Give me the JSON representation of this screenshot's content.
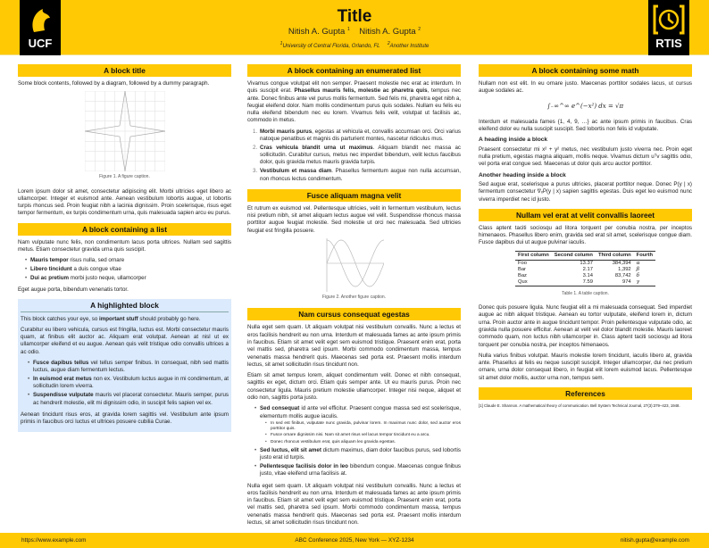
{
  "header": {
    "title": "Title",
    "authors": [
      {
        "name": "Nitish A. Gupta",
        "sup": "1"
      },
      {
        "name": "Nitish A. Gupta",
        "sup": "2"
      }
    ],
    "affiliations": [
      {
        "sup": "1",
        "name": "University of Central Florida, Orlando, FL"
      },
      {
        "sup": "2",
        "name": "Another Institute"
      }
    ],
    "logo_left": "UCF",
    "logo_right": "RTIS",
    "colors": {
      "accent": "#ffc904",
      "highlight": "#dbeafc"
    }
  },
  "col1": {
    "b1": {
      "title": "A block title",
      "intro": "Some block contents, followed by a diagram, followed by a dummy paragraph.",
      "caption": "Figure 1. A figure caption.",
      "para": "Lorem ipsum dolor sit amet, consectetur adipiscing elit. Morbi ultricies eget libero ac ullamcorper. Integer et euismod ante. Aenean vestibulum lobortis augue, ut lobortis turpis rhoncus sed. Proin feugiat nibh a lacinia dignissim. Proin scelerisque, risus eget tempor fermentum, ex turpis condimentum urna, quis malesuada sapien arcu eu purus."
    },
    "b2": {
      "title": "A block containing a list",
      "intro": "Nam vulputate nunc felis, non condimentum lacus porta ultrices. Nullam sed sagittis metus. Etiam consectetur gravida urna quis suscipit.",
      "items": [
        {
          "bold": "Mauris tempor",
          "text": " risus nulla, sed ornare"
        },
        {
          "bold": "Libero tincidunt",
          "text": " a duis congue vitae"
        },
        {
          "bold": "Dui ac pretium",
          "text": " morbi justo neque, ullamcorper"
        }
      ],
      "outro": "Eget augue porta, bibendum venenatis tortor."
    },
    "b3": {
      "title": "A highlighted block",
      "p1a": "This block catches your eye, so ",
      "p1b": "important stuff",
      "p1c": " should probably go here.",
      "p2": "Curabitur eu libero vehicula, cursus est fringilla, luctus est. Morbi consectetur mauris quam, at finibus elit auctor ac. Aliquam erat volutpat. Aenean at nisl ut ex ullamcorper eleifend et eu augue. Aenean quis velit tristique odio convallis ultrices a ac odio.",
      "items": [
        {
          "bold": "Fusce dapibus tellus",
          "text": " vel tellus semper finibus. In consequat, nibh sed mattis luctus, augue diam fermentum lectus."
        },
        {
          "bold": "In euismod erat metus",
          "text": " non ex. Vestibulum luctus augue in mi condimentum, at sollicitudin lorem viverra."
        },
        {
          "bold": "Suspendisse vulputate",
          "text": " mauris vel placerat consectetur. Mauris semper, purus ac hendrerit molestie, elit mi dignissim odio, in suscipit felis sapien vel ex."
        }
      ],
      "p3": "Aenean tincidunt risus eros, at gravida lorem sagittis vel. Vestibulum ante ipsum primis in faucibus orci luctus et ultrices posuere cubilia Curae."
    }
  },
  "col2": {
    "b1": {
      "title": "A block containing an enumerated list",
      "pa": "Vivamus congue volutpat elit non semper. Praesent molestie nec erat ac interdum. In quis suscipit erat. ",
      "pb": "Phasellus mauris felis, molestie ac pharetra quis",
      "pc": ", tempus nec ante. Donec finibus ante vel purus mollis fermentum. Sed felis mi, pharetra eget nibh a, feugiat eleifend dolor. Nam mollis condimentum purus quis sodales. Nullam eu felis eu nulla eleifend bibendum nec eu lorem. Vivamus felis velit, volutpat ut facilisis ac, commodo in metus.",
      "items": [
        {
          "num": "1.",
          "bold": "Morbi mauris purus",
          "text": ", egestas at vehicula et, convallis accumsan orci. Orci varius natoque penatibus et magnis dis parturient montes, nascetur ridiculus mus."
        },
        {
          "num": "2.",
          "bold": "Cras vehicula blandit urna ut maximus",
          "text": ". Aliquam blandit nec massa ac sollicitudin. Curabitur cursus, metus nec imperdiet bibendum, velit lectus faucibus dolor, quis gravida metus mauris gravida turpis."
        },
        {
          "num": "3.",
          "bold": "Vestibulum et massa diam",
          "text": ". Phasellus fermentum augue non nulla accumsan, non rhoncus lectus condimentum."
        }
      ]
    },
    "b2": {
      "title": "Fusce aliquam magna velit",
      "para": "Et rutrum ex euismod vel. Pellentesque ultricies, velit in fermentum vestibulum, lectus nisi pretium nibh, sit amet aliquam lectus augue vel velit. Suspendisse rhoncus massa porttitor augue feugiat molestie. Sed molestie ut orci nec malesuada. Sed ultricies feugiat est fringilla posuere.",
      "caption": "Figure 2. Another figure caption."
    },
    "b3": {
      "title": "Nam cursus consequat egestas",
      "p1": "Nulla eget sem quam. Ut aliquam volutpat nisi vestibulum convallis. Nunc a lectus et eros facilisis hendrerit eu non urna. Interdum et malesuada fames ac ante ipsum primis in faucibus. Etiam sit amet velit eget sem euismod tristique. Praesent enim erat, porta vel mattis sed, pharetra sed ipsum. Morbi commodo condimentum massa, tempus venenatis massa hendrerit quis. Maecenas sed porta est. Praesent mollis interdum lectus, sit amet sollicitudin risus tincidunt non.",
      "p2": "Etiam sit amet tempus lorem, aliquet condimentum velit. Donec et nibh consequat, sagittis ex eget, dictum orci. Etiam quis semper ante. Ut eu mauris purus. Proin nec consectetur ligula. Mauris pretium molestie ullamcorper. Integer nisi neque, aliquet et odio non, sagittis porta justo.",
      "items": [
        {
          "bold": "Sed consequat",
          "text": " id ante vel efficitur. Praesent congue massa sed est scelerisque, elementum mollis augue iaculis.",
          "sub": [
            "In sed est finibus, vulputate nunc gravida, pulvinar lorem. In maximus nunc dolor, sed auctor eros porttitor quis.",
            "Fusce ornare dignissim nisi. Nam sit amet risus vel lacus tempor tincidunt eu a arcu.",
            "Donec rhoncus vestibulum erat, quis aliquam leo gravida egestas."
          ]
        },
        {
          "bold": "Sed luctus, elit sit amet",
          "text": " dictum maximus, diam dolor faucibus purus, sed lobortis justo erat id turpis."
        },
        {
          "bold": "Pellentesque facilisis dolor in leo",
          "text": " bibendum congue. Maecenas congue finibus justo, vitae eleifend urna facilisis at."
        }
      ],
      "p3": "Nulla eget sem quam. Ut aliquam volutpat nisi vestibulum convallis. Nunc a lectus et eros facilisis hendrerit eu non urna. Interdum et malesuada fames ac ante ipsum primis in faucibus. Etiam sit amet velit eget sem euismod tristique. Praesent enim erat, porta vel mattis sed, pharetra sed ipsum. Morbi commodo condimentum massa, tempus venenatis massa hendrerit quis. Maecenas sed porta est. Praesent mollis interdum lectus, sit amet sollicitudin risus tincidunt non."
    }
  },
  "col3": {
    "b1": {
      "title": "A block containing some math",
      "p1": "Nullam non est elit. In eu ornare justo. Maecenas porttitor sodales lacus, ut cursus augue sodales ac.",
      "eq": "∫₋∞^∞ e^(−x²) dx = √π",
      "p2": "Interdum et malesuada fames {1, 4, 9, …} ac ante ipsum primis in faucibus. Cras eleifend dolor eu nulla suscipit suscipit. Sed lobortis non felis id vulputate.",
      "h1": "A heading inside a block",
      "p3": "Praesent consectetur mi x² + y² metus, nec vestibulum justo viverra nec. Proin eget nulla pretium, egestas magna aliquam, mollis neque. Vivamus dictum uᵀv sagittis odio, vel porta erat congue sed. Maecenas ut dolor quis arcu auctor porttitor.",
      "h2": "Another heading inside a block",
      "p4": "Sed augue erat, scelerisque a purus ultricies, placerat porttitor neque. Donec P(y | x) fermentum consectetur ∇ₓP(y | x) sapien sagittis egestas. Duis eget leo euismod nunc viverra imperdiet nec id justo."
    },
    "b2": {
      "title": "Nullam vel erat at velit convallis laoreet",
      "p1": "Class aptent taciti sociosqu ad litora torquent per conubia nostra, per inceptos himenaeos. Phasellus libero enim, gravida sed erat sit amet, scelerisque congue diam. Fusce dapibus dui ut augue pulvinar iaculis.",
      "table": {
        "headers": [
          "First column",
          "Second column",
          "Third column",
          "Fourth"
        ],
        "rows": [
          [
            "Foo",
            "13.37",
            "384,394",
            "α"
          ],
          [
            "Bar",
            "2.17",
            "1,392",
            "β"
          ],
          [
            "Baz",
            "3.14",
            "83,742",
            "δ"
          ],
          [
            "Qux",
            "7.59",
            "974",
            "γ"
          ]
        ]
      },
      "caption": "Table 1. A table caption.",
      "p2": "Donec quis posuere ligula. Nunc feugiat elit a mi malesuada consequat. Sed imperdiet augue ac nibh aliquet tristique. Aenean eu tortor vulputate, eleifend lorem in, dictum urna. Proin auctor ante in augue tincidunt tempor. Proin pellentesque vulputate odio, ac gravida nulla posuere efficitur. Aenean at velit vel dolor blandit molestie. Mauris laoreet commodo quam, non luctus nibh ullamcorper in. Class aptent taciti sociosqu ad litora torquent per conubia nostra, per inceptos himenaeos.",
      "p3": "Nulla varius finibus volutpat. Mauris molestie lorem tincidunt, iaculis libero at, gravida ante. Phasellus at felis eu neque suscipit suscipit. Integer ullamcorper, dui nec pretium ornare, urna dolor consequat libero, in feugiat elit lorem euismod lacus. Pellentesque sit amet dolor mollis, auctor urna non, tempus sem."
    },
    "b3": {
      "title": "References",
      "ref": "[1]  Claude E. Shannon. A mathematical theory of communication. Bell System Technical Journal, 27(3):379–423, 1948."
    }
  },
  "footer": {
    "left": "https://www.example.com",
    "center": "ABC Conference 2025, New York — XYZ-1234",
    "right": "nitish.gupta@example.com"
  }
}
